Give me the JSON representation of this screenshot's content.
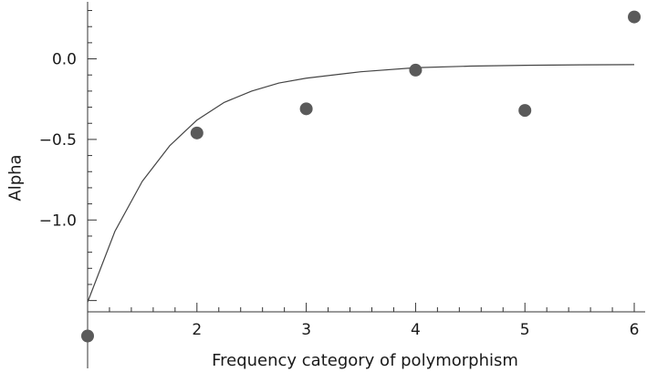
{
  "chart_data": {
    "type": "scatter",
    "title": "",
    "xlabel": "Frequency category of polymorphism",
    "ylabel": "Alpha",
    "xlim": [
      1,
      6.1
    ],
    "ylim": [
      -1.57,
      0.32
    ],
    "x_ticks": [
      2,
      3,
      4,
      5,
      6
    ],
    "x_tick_labels": [
      "2",
      "3",
      "4",
      "5",
      "6"
    ],
    "y_ticks": [
      0.0,
      -0.5,
      -1.0
    ],
    "y_tick_labels": [
      "0.0",
      "-0.5",
      "-1.0"
    ],
    "x_minor_step": 0.2,
    "y_minor_step": 0.1,
    "grid": false,
    "series": [
      {
        "kind": "points",
        "x": [
          1,
          2,
          3,
          4,
          5,
          6
        ],
        "y": [
          -1.72,
          -0.46,
          -0.31,
          -0.07,
          -0.32,
          0.26
        ]
      },
      {
        "kind": "fit-curve",
        "x": [
          1.0,
          1.25,
          1.5,
          1.75,
          2.0,
          2.25,
          2.5,
          2.75,
          3.0,
          3.5,
          4.0,
          4.5,
          5.0,
          5.5,
          6.0
        ],
        "y": [
          -1.51,
          -1.07,
          -0.76,
          -0.54,
          -0.38,
          -0.27,
          -0.2,
          -0.15,
          -0.12,
          -0.08,
          -0.055,
          -0.045,
          -0.04,
          -0.037,
          -0.036
        ]
      }
    ]
  }
}
